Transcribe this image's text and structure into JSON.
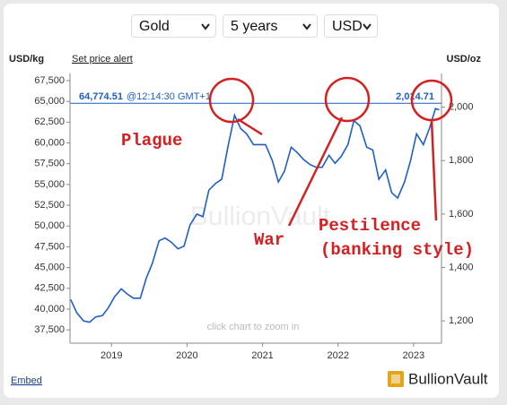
{
  "controls": {
    "metal": "Gold",
    "period": "5 years",
    "currency": "USD"
  },
  "links": {
    "alert": "Set price alert",
    "embed": "Embed"
  },
  "brand": "BullionVault",
  "chart_data": {
    "type": "line",
    "left_unit": "USD/kg",
    "right_unit": "USD/oz",
    "watermark": "BullionVault",
    "hint": "click chart to zoom in",
    "x": [
      2018.46,
      2018.54,
      2018.63,
      2018.71,
      2018.79,
      2018.88,
      2018.96,
      2019.04,
      2019.13,
      2019.21,
      2019.29,
      2019.38,
      2019.46,
      2019.54,
      2019.63,
      2019.71,
      2019.79,
      2019.88,
      2019.96,
      2020.04,
      2020.13,
      2020.21,
      2020.29,
      2020.38,
      2020.46,
      2020.54,
      2020.63,
      2020.71,
      2020.79,
      2020.88,
      2020.96,
      2021.04,
      2021.13,
      2021.21,
      2021.29,
      2021.38,
      2021.46,
      2021.54,
      2021.63,
      2021.71,
      2021.79,
      2021.88,
      2021.96,
      2022.04,
      2022.13,
      2022.21,
      2022.29,
      2022.38,
      2022.46,
      2022.54,
      2022.63,
      2022.71,
      2022.79,
      2022.88,
      2022.96,
      2023.04,
      2023.13,
      2023.21,
      2023.29,
      2023.34
    ],
    "series": [
      {
        "name": "Gold",
        "color": "#1f5fc4",
        "values": [
          41150,
          39550,
          38580,
          38420,
          39060,
          39220,
          40190,
          41470,
          42440,
          41800,
          41310,
          41310,
          43720,
          45490,
          48230,
          48550,
          48060,
          47260,
          47580,
          50150,
          51440,
          51120,
          54330,
          55140,
          55620,
          59480,
          63340,
          61730,
          61090,
          59800,
          59800,
          59800,
          57870,
          55300,
          56590,
          59480,
          58840,
          58030,
          57390,
          57070,
          57070,
          58510,
          57550,
          58350,
          59800,
          62690,
          62050,
          59480,
          59160,
          55620,
          56750,
          54010,
          53370,
          55300,
          57870,
          61090,
          59800,
          61730,
          64140,
          63980
        ]
      }
    ],
    "xlim": [
      2018.45,
      2023.37
    ],
    "xticks": [
      2019,
      2020,
      2021,
      2022,
      2023
    ],
    "ylim": [
      35900,
      68360
    ],
    "yticks": [
      {
        "value": 37500,
        "label": "37,500"
      },
      {
        "value": 40000,
        "label": "40,000"
      },
      {
        "value": 42500,
        "label": "42,500"
      },
      {
        "value": 45000,
        "label": "45,000"
      },
      {
        "value": 47500,
        "label": "47,500"
      },
      {
        "value": 50000,
        "label": "50,000"
      },
      {
        "value": 52500,
        "label": "52,500"
      },
      {
        "value": 55000,
        "label": "55,000"
      },
      {
        "value": 57500,
        "label": "57,500"
      },
      {
        "value": 60000,
        "label": "60,000"
      },
      {
        "value": 62500,
        "label": "62,500"
      },
      {
        "value": 65000,
        "label": "65,000"
      },
      {
        "value": 67500,
        "label": "67,500"
      }
    ],
    "y2lim": [
      1116.6,
      2126.2
    ],
    "y2ticks": [
      {
        "value": 1200,
        "label": "1,200"
      },
      {
        "value": 1400,
        "label": "1,400"
      },
      {
        "value": 1600,
        "label": "1,600"
      },
      {
        "value": 1800,
        "label": "1,800"
      },
      {
        "value": 2000,
        "label": "2,000"
      }
    ],
    "current_price": {
      "value": 64774.51,
      "label": "64,774.51",
      "time": "@12:14:30 GMT+1",
      "oz_value": 2014.71,
      "oz_label": "2,014.71"
    },
    "annotations": [
      "Plague",
      "War",
      "Pestilence",
      "(banking style)"
    ]
  }
}
